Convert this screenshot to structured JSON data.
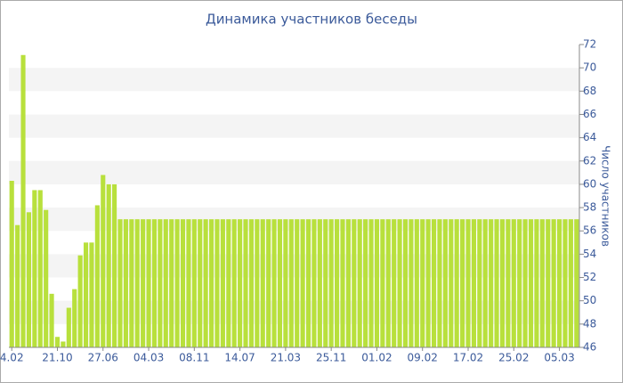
{
  "chart_data": {
    "type": "bar",
    "title": "Динамика участников беседы",
    "y_axis_label": "Число участников",
    "categories": [
      "4.02",
      null,
      null,
      null,
      null,
      null,
      null,
      null,
      "21.10",
      null,
      null,
      null,
      null,
      null,
      null,
      null,
      "27.06",
      null,
      null,
      null,
      null,
      null,
      null,
      null,
      "04.03",
      null,
      null,
      null,
      null,
      null,
      null,
      null,
      "08.11",
      null,
      null,
      null,
      null,
      null,
      null,
      null,
      "14.07",
      null,
      null,
      null,
      null,
      null,
      null,
      null,
      "21.03",
      null,
      null,
      null,
      null,
      null,
      null,
      null,
      "25.11",
      null,
      null,
      null,
      null,
      null,
      null,
      null,
      "01.02",
      null,
      null,
      null,
      null,
      null,
      null,
      null,
      "09.02",
      null,
      null,
      null,
      null,
      null,
      null,
      null,
      "17.02",
      null,
      null,
      null,
      null,
      null,
      null,
      null,
      "25.02",
      null,
      null,
      null,
      null,
      null,
      null,
      null,
      "05.03",
      null,
      null,
      null
    ],
    "values": [
      60.3,
      56.5,
      71.1,
      57.6,
      59.5,
      59.5,
      57.8,
      50.6,
      46.9,
      46.5,
      49.4,
      51.0,
      53.9,
      55.0,
      55.0,
      58.2,
      60.8,
      60.0,
      60.0,
      57,
      57,
      57,
      57,
      57,
      57,
      57,
      57,
      57,
      57,
      57,
      57,
      57,
      57,
      57,
      57,
      57,
      57,
      57,
      57,
      57,
      57,
      57,
      57,
      57,
      57,
      57,
      57,
      57,
      57,
      57,
      57,
      57,
      57,
      57,
      57,
      57,
      57,
      57,
      57,
      57,
      57,
      57,
      57,
      57,
      57,
      57,
      57,
      57,
      57,
      57,
      57,
      57,
      57,
      57,
      57,
      57,
      57,
      57,
      57,
      57,
      57,
      57,
      57,
      57,
      57,
      57,
      57,
      57,
      57,
      57,
      57,
      57,
      57,
      57,
      57,
      57,
      57,
      57,
      57,
      57
    ],
    "color": "#b8e03c",
    "ylim": [
      46,
      72
    ],
    "yticks": [
      46,
      48,
      50,
      52,
      54,
      56,
      58,
      60,
      62,
      64,
      66,
      68,
      70,
      72
    ],
    "grid": true,
    "y_axis_side": "right"
  }
}
